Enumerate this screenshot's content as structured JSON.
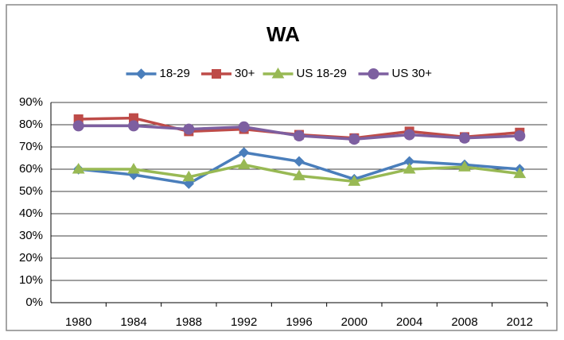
{
  "chart_data": {
    "type": "line",
    "title": "WA",
    "categories": [
      "1980",
      "1984",
      "1988",
      "1992",
      "1996",
      "2000",
      "2004",
      "2008",
      "2012"
    ],
    "series": [
      {
        "name": "18-29",
        "color": "#4a7ebb",
        "marker": "diamond",
        "values": [
          60,
          57.5,
          53.5,
          67.5,
          63.5,
          55.5,
          63.5,
          62,
          60
        ]
      },
      {
        "name": "30+",
        "color": "#be4b48",
        "marker": "square",
        "values": [
          82.5,
          83,
          77,
          78,
          75.5,
          74,
          77,
          74.5,
          76.5
        ]
      },
      {
        "name": "US 18-29",
        "color": "#98b954",
        "marker": "triangle",
        "values": [
          60,
          60,
          56.5,
          62,
          57,
          54.5,
          60,
          61,
          58
        ]
      },
      {
        "name": "US 30+",
        "color": "#7d5fa0",
        "marker": "circle",
        "values": [
          79.5,
          79.5,
          78,
          79,
          75,
          73.5,
          75.5,
          74,
          75
        ]
      }
    ],
    "ylim": [
      0,
      90
    ],
    "yticks": [
      {
        "value": 0,
        "label": "0%"
      },
      {
        "value": 10,
        "label": "10%"
      },
      {
        "value": 20,
        "label": "20%"
      },
      {
        "value": 30,
        "label": "30%"
      },
      {
        "value": 40,
        "label": "40%"
      },
      {
        "value": 50,
        "label": "50%"
      },
      {
        "value": 60,
        "label": "60%"
      },
      {
        "value": 70,
        "label": "70%"
      },
      {
        "value": 80,
        "label": "80%"
      },
      {
        "value": 90,
        "label": "90%"
      }
    ],
    "grid": true,
    "legend": "top"
  }
}
